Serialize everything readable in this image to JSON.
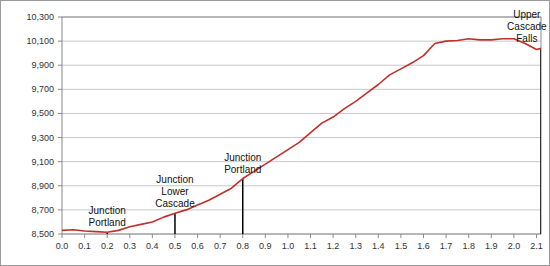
{
  "chart_data": {
    "type": "line",
    "x": [
      0.0,
      0.05,
      0.1,
      0.15,
      0.2,
      0.25,
      0.3,
      0.35,
      0.4,
      0.45,
      0.5,
      0.55,
      0.6,
      0.65,
      0.7,
      0.75,
      0.8,
      0.85,
      0.9,
      0.95,
      1.0,
      1.05,
      1.1,
      1.15,
      1.2,
      1.25,
      1.3,
      1.35,
      1.4,
      1.45,
      1.5,
      1.55,
      1.6,
      1.65,
      1.7,
      1.75,
      1.8,
      1.85,
      1.9,
      1.95,
      2.0,
      2.05,
      2.1,
      2.12
    ],
    "values": [
      8530,
      8535,
      8525,
      8520,
      8515,
      8530,
      8560,
      8580,
      8600,
      8640,
      8672,
      8700,
      8740,
      8780,
      8830,
      8880,
      8960,
      9020,
      9080,
      9140,
      9200,
      9260,
      9340,
      9420,
      9470,
      9540,
      9600,
      9670,
      9740,
      9820,
      9870,
      9920,
      9980,
      10080,
      10100,
      10105,
      10120,
      10110,
      10110,
      10120,
      10120,
      10080,
      10030,
      10040
    ],
    "color": "#c0302a",
    "xlim": [
      0,
      2.12
    ],
    "ylim": [
      8500,
      10300
    ],
    "xticks": [
      {
        "value": 0,
        "label": "0.0"
      },
      0.1,
      0.2,
      0.3,
      0.4,
      0.5,
      0.6,
      0.7,
      0.8,
      0.9,
      {
        "value": 1,
        "label": "1.0"
      },
      1.1,
      1.2,
      1.3,
      1.4,
      1.5,
      1.6,
      1.7,
      1.8,
      1.9,
      {
        "value": 2,
        "label": "2.0"
      },
      2.1
    ],
    "yticks": [
      {
        "value": 8500,
        "label": "8,500"
      },
      {
        "value": 8700,
        "label": "8,700"
      },
      {
        "value": 8900,
        "label": "8,900"
      },
      {
        "value": 9100,
        "label": "9,100"
      },
      {
        "value": 9300,
        "label": "9,300"
      },
      {
        "value": 9500,
        "label": "9,500"
      },
      {
        "value": 9700,
        "label": "9,700"
      },
      {
        "value": 9900,
        "label": "9,900"
      },
      {
        "value": 10100,
        "label": "10,100"
      },
      {
        "value": 10300,
        "label": "10,300"
      }
    ],
    "grid": true,
    "annotations": [
      {
        "x": 0.2,
        "y": 8515,
        "label": "Junction Portland"
      },
      {
        "x": 0.5,
        "y": 8672,
        "label": "Junction Lower Cascade"
      },
      {
        "x": 0.8,
        "y": 8960,
        "label": "Junction Portland"
      },
      {
        "x": 2.12,
        "y": 10040,
        "label": "Upper Cascade Falls"
      }
    ]
  }
}
